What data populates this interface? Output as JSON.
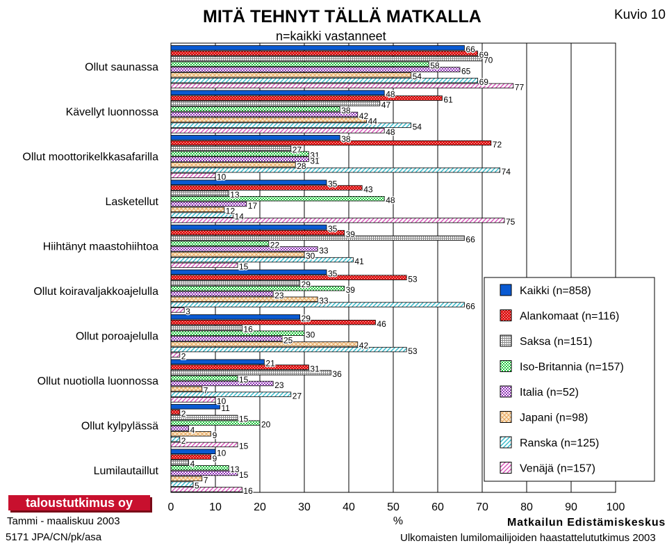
{
  "header": {
    "title": "MITÄ TEHNYT TÄLLÄ MATKALLA",
    "subtitle": "n=kaikki vastanneet",
    "figure_label": "Kuvio 10"
  },
  "footer": {
    "logo_text": "taloustutkimus oy",
    "date": "Tammi - maaliskuu 2003",
    "code": "5171 JPA/CN/pk/asa",
    "center": "Matkailun Edistämiskeskus",
    "survey": "Ulkomaisten lumilomailijoiden haastattelututkimus 2003"
  },
  "chart_data": {
    "type": "bar",
    "orientation": "horizontal",
    "title": "MITÄ TEHNYT TÄLLÄ MATKALLA",
    "subtitle": "n=kaikki vastanneet",
    "xlabel": "%",
    "ylabel": "",
    "xlim": [
      0,
      100
    ],
    "xticks": [
      0,
      10,
      20,
      30,
      40,
      50,
      60,
      70,
      80,
      90,
      100
    ],
    "grid": true,
    "legend_position": "right",
    "categories": [
      "Ollut saunassa",
      "Kävellyt luonnossa",
      "Ollut moottorikelkkasafarilla",
      "Lasketellut",
      "Hiihtänyt maastohiihtoa",
      "Ollut koiravaljakkoajelulla",
      "Ollut poroajelulla",
      "Ollut nuotiolla luonnossa",
      "Ollut kylpylässä",
      "Lumilautaillut"
    ],
    "series": [
      {
        "name": "Kaikki (n=858)",
        "values": [
          66,
          48,
          38,
          35,
          35,
          35,
          29,
          21,
          11,
          10
        ],
        "color": "#0a5ad2",
        "pattern": "solid"
      },
      {
        "name": "Alankomaat (n=116)",
        "values": [
          69,
          61,
          72,
          43,
          39,
          53,
          46,
          31,
          2,
          9
        ],
        "color": "#e01818",
        "pattern": "dots"
      },
      {
        "name": "Saksa (n=151)",
        "values": [
          70,
          47,
          27,
          13,
          66,
          29,
          16,
          36,
          15,
          4
        ],
        "color": "#a8a8a8",
        "pattern": "grid"
      },
      {
        "name": "Iso-Britannia (n=157)",
        "values": [
          58,
          38,
          31,
          48,
          22,
          39,
          30,
          15,
          20,
          13
        ],
        "color": "#1ec83c",
        "pattern": "checker"
      },
      {
        "name": "Italia (n=52)",
        "values": [
          65,
          42,
          31,
          17,
          33,
          23,
          25,
          23,
          4,
          15
        ],
        "color": "#b050d0",
        "pattern": "checker"
      },
      {
        "name": "Japani (n=98)",
        "values": [
          54,
          44,
          28,
          12,
          30,
          33,
          42,
          7,
          9,
          7
        ],
        "color": "#f0c080",
        "pattern": "diamond"
      },
      {
        "name": "Ranska (n=125)",
        "values": [
          69,
          54,
          74,
          14,
          41,
          66,
          53,
          27,
          2,
          5
        ],
        "color": "#40c8d8",
        "pattern": "diagonal"
      },
      {
        "name": "Venäjä (n=157)",
        "values": [
          77,
          48,
          10,
          75,
          15,
          3,
          2,
          10,
          15,
          16
        ],
        "color": "#e060c0",
        "pattern": "diagonal"
      }
    ]
  }
}
